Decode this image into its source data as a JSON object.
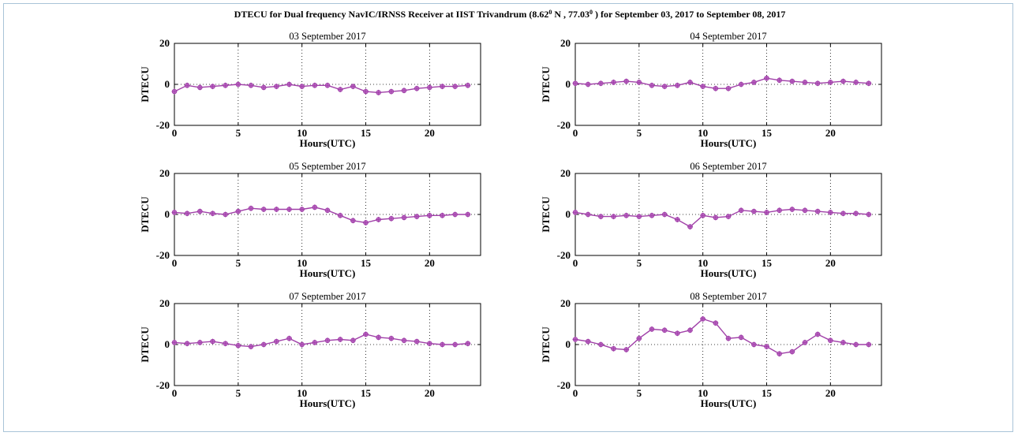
{
  "figure": {
    "title_main": "DTECU for  Dual frequency NavIC/IRNSS Receiver at IIST Trivandrum (8.62",
    "title_deg1": "0",
    "title_mid": " N , 77.03",
    "title_deg2": "0",
    "title_end": " ) for September 03, 2017 to September 08, 2017",
    "line_color": "#a040a8",
    "marker_color": "#c070c8"
  },
  "chart_data": [
    {
      "type": "line",
      "title": "03 September 2017",
      "xlabel": "Hours(UTC)",
      "ylabel": "DTECU",
      "xlim": [
        0,
        24
      ],
      "ylim": [
        -20,
        20
      ],
      "xticks": [
        0,
        5,
        10,
        15,
        20
      ],
      "yticks": [
        -20,
        0,
        20
      ],
      "grid": "dotted vertical at 5,10,15,20; dotted horizontal at 0",
      "x": [
        0,
        1,
        2,
        3,
        4,
        5,
        6,
        7,
        8,
        9,
        10,
        11,
        12,
        13,
        14,
        15,
        16,
        17,
        18,
        19,
        20,
        21,
        22,
        23
      ],
      "values": [
        -3.5,
        -0.5,
        -1.5,
        -1,
        -0.5,
        0,
        -0.5,
        -1.5,
        -1,
        0,
        -1,
        -0.5,
        -0.5,
        -2.5,
        -1,
        -3.5,
        -4,
        -3.5,
        -3,
        -2,
        -1.5,
        -1,
        -1,
        -0.5
      ]
    },
    {
      "type": "line",
      "title": "04 September 2017",
      "xlabel": "Hours(UTC)",
      "ylabel": "DTECU",
      "xlim": [
        0,
        24
      ],
      "ylim": [
        -20,
        20
      ],
      "xticks": [
        0,
        5,
        10,
        15,
        20
      ],
      "yticks": [
        -20,
        0,
        20
      ],
      "grid": "dotted vertical at 5,10,15,20; dotted horizontal at 0",
      "x": [
        0,
        1,
        2,
        3,
        4,
        5,
        6,
        7,
        8,
        9,
        10,
        11,
        12,
        13,
        14,
        15,
        16,
        17,
        18,
        19,
        20,
        21,
        22,
        23
      ],
      "values": [
        0.5,
        0,
        0.5,
        1,
        1.5,
        1,
        -0.5,
        -1,
        -0.5,
        1,
        -1,
        -2,
        -2,
        0,
        1,
        3,
        2,
        1.5,
        1,
        0.5,
        1,
        1.5,
        1,
        0.5
      ]
    },
    {
      "type": "line",
      "title": "05 September 2017",
      "xlabel": "Hours(UTC)",
      "ylabel": "DTECU",
      "xlim": [
        0,
        24
      ],
      "ylim": [
        -20,
        20
      ],
      "xticks": [
        0,
        5,
        10,
        15,
        20
      ],
      "yticks": [
        -20,
        0,
        20
      ],
      "grid": "dotted vertical at 5,10,15,20; dotted horizontal at 0",
      "x": [
        0,
        1,
        2,
        3,
        4,
        5,
        6,
        7,
        8,
        9,
        10,
        11,
        12,
        13,
        14,
        15,
        16,
        17,
        18,
        19,
        20,
        21,
        22,
        23
      ],
      "values": [
        1,
        0.5,
        1.5,
        0.5,
        0,
        1.5,
        3,
        2.5,
        2.5,
        2.5,
        2.5,
        3.5,
        2,
        -0.5,
        -3,
        -4,
        -2.5,
        -2,
        -1.5,
        -1,
        -0.5,
        -0.5,
        0,
        0
      ]
    },
    {
      "type": "line",
      "title": "06 September 2017",
      "xlabel": "Hours(UTC)",
      "ylabel": "DTECU",
      "xlim": [
        0,
        24
      ],
      "ylim": [
        -20,
        20
      ],
      "xticks": [
        0,
        5,
        10,
        15,
        20
      ],
      "yticks": [
        -20,
        0,
        20
      ],
      "grid": "dotted vertical at 5,10,15,20; dotted horizontal at 0",
      "x": [
        0,
        1,
        2,
        3,
        4,
        5,
        6,
        7,
        8,
        9,
        10,
        11,
        12,
        13,
        14,
        15,
        16,
        17,
        18,
        19,
        20,
        21,
        22,
        23
      ],
      "values": [
        1,
        0,
        -1,
        -1,
        -0.5,
        -1,
        -0.5,
        0,
        -2.5,
        -6,
        -0.5,
        -1.5,
        -1,
        2,
        1.5,
        1,
        2,
        2.5,
        2,
        1.5,
        1,
        0.5,
        0.5,
        0
      ]
    },
    {
      "type": "line",
      "title": "07 September 2017",
      "xlabel": "Hours(UTC)",
      "ylabel": "DTECU",
      "xlim": [
        0,
        24
      ],
      "ylim": [
        -20,
        20
      ],
      "xticks": [
        0,
        5,
        10,
        15,
        20
      ],
      "yticks": [
        -20,
        0,
        20
      ],
      "grid": "dotted vertical at 5,10,15,20; dotted horizontal at 0",
      "x": [
        0,
        1,
        2,
        3,
        4,
        5,
        6,
        7,
        8,
        9,
        10,
        11,
        12,
        13,
        14,
        15,
        16,
        17,
        18,
        19,
        20,
        21,
        22,
        23
      ],
      "values": [
        1,
        0.5,
        1,
        1.5,
        0.5,
        -0.5,
        -1,
        0,
        1.5,
        3,
        0,
        1,
        2,
        2.5,
        2,
        5,
        3.5,
        3,
        2,
        1.5,
        0.5,
        0,
        0,
        0.5
      ]
    },
    {
      "type": "line",
      "title": "08 September 2017",
      "xlabel": "Hours(UTC)",
      "ylabel": "DTECU",
      "xlim": [
        0,
        24
      ],
      "ylim": [
        -20,
        20
      ],
      "xticks": [
        0,
        5,
        10,
        15,
        20
      ],
      "yticks": [
        -20,
        0,
        20
      ],
      "grid": "dotted vertical at 5,10,15,20; dotted horizontal at 0",
      "x": [
        0,
        1,
        2,
        3,
        4,
        5,
        6,
        7,
        8,
        9,
        10,
        11,
        12,
        13,
        14,
        15,
        16,
        17,
        18,
        19,
        20,
        21,
        22,
        23
      ],
      "values": [
        2.5,
        1.5,
        0,
        -2,
        -2.5,
        3,
        7.5,
        7,
        5.5,
        7,
        12.5,
        10.5,
        3,
        3.5,
        0,
        -1,
        -4.5,
        -3.5,
        1,
        5,
        2,
        1,
        0,
        0
      ]
    }
  ]
}
